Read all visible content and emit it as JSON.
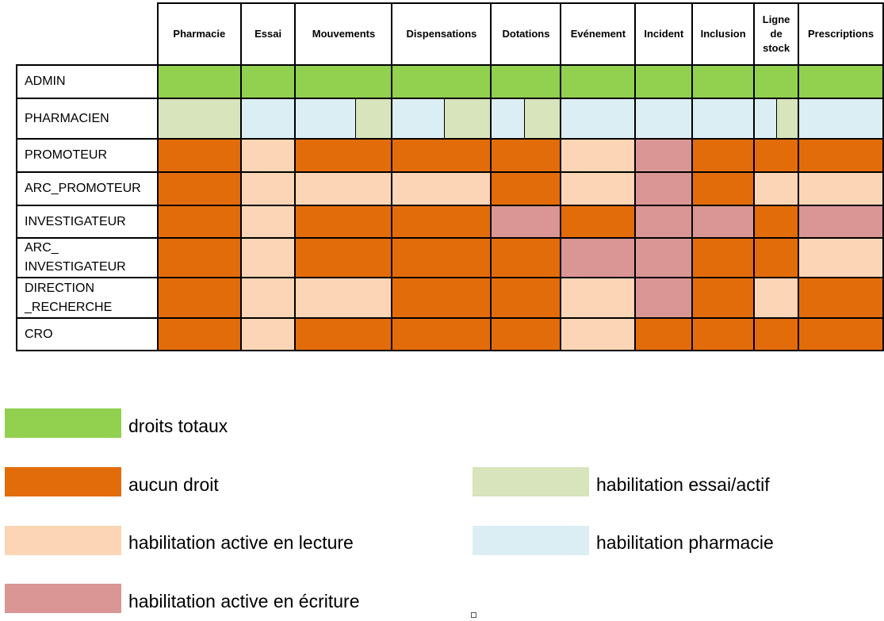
{
  "columns": [
    "Pharmacie",
    "Essai",
    "Mouvements",
    "Dispensations",
    "Dotations",
    "Evénement",
    "Incident",
    "Inclusion",
    "Ligne de stock",
    "Prescriptions"
  ],
  "column_lines": [
    [
      "Pharmacie"
    ],
    [
      "Essai"
    ],
    [
      "Mouvements"
    ],
    [
      "Dispensations"
    ],
    [
      "Dotations"
    ],
    [
      "Evénement"
    ],
    [
      "Incident"
    ],
    [
      "Inclusion"
    ],
    [
      "Ligne",
      "de",
      "stock"
    ],
    [
      "Prescriptions"
    ]
  ],
  "row_labels": [
    [
      "ADMIN"
    ],
    [
      "PHARMACIEN"
    ],
    [
      "PROMOTEUR"
    ],
    [
      "ARC_PROMOTEUR"
    ],
    [
      "INVESTIGATEUR"
    ],
    [
      "ARC_",
      "INVESTIGATEUR"
    ],
    [
      "DIRECTION",
      "_RECHERCHE"
    ],
    [
      "CRO"
    ]
  ],
  "colors": {
    "total": "#92d050",
    "none": "#e36c0a",
    "read": "#fbd5b5",
    "write": "#d99694",
    "essai": "#d7e4bc",
    "pharma": "#dbeef3"
  },
  "cells": [
    [
      "total",
      "total",
      "total",
      "total",
      "total",
      "total",
      "total",
      "total",
      "total",
      "total"
    ],
    [
      "essai",
      "pharma",
      [
        "pharma",
        "essai"
      ],
      [
        "pharma",
        "essai"
      ],
      [
        "pharma",
        "essai"
      ],
      "pharma",
      "pharma",
      "pharma",
      [
        "pharma",
        "essai"
      ],
      "pharma"
    ],
    [
      "none",
      "read",
      "none",
      "none",
      "none",
      "read",
      "write",
      "none",
      "none",
      "none"
    ],
    [
      "none",
      "read",
      "read",
      "read",
      "none",
      "read",
      "write",
      "none",
      "read",
      "read"
    ],
    [
      "none",
      "read",
      "none",
      "none",
      "write",
      "none",
      "write",
      "write",
      "none",
      "write"
    ],
    [
      "none",
      "read",
      "none",
      "none",
      "none",
      "write",
      "write",
      "none",
      "none",
      "read"
    ],
    [
      "none",
      "read",
      "read",
      "none",
      "none",
      "read",
      "write",
      "none",
      "read",
      "none"
    ],
    [
      "none",
      "read",
      "none",
      "none",
      "none",
      "read",
      "none",
      "none",
      "none",
      "none"
    ]
  ],
  "legend": {
    "total": "droits totaux",
    "none": "aucun droit",
    "read": "habilitation active en lecture",
    "write": "habilitation active en écriture",
    "essai": "habilitation essai/actif",
    "pharma": "habilitation pharmacie"
  }
}
